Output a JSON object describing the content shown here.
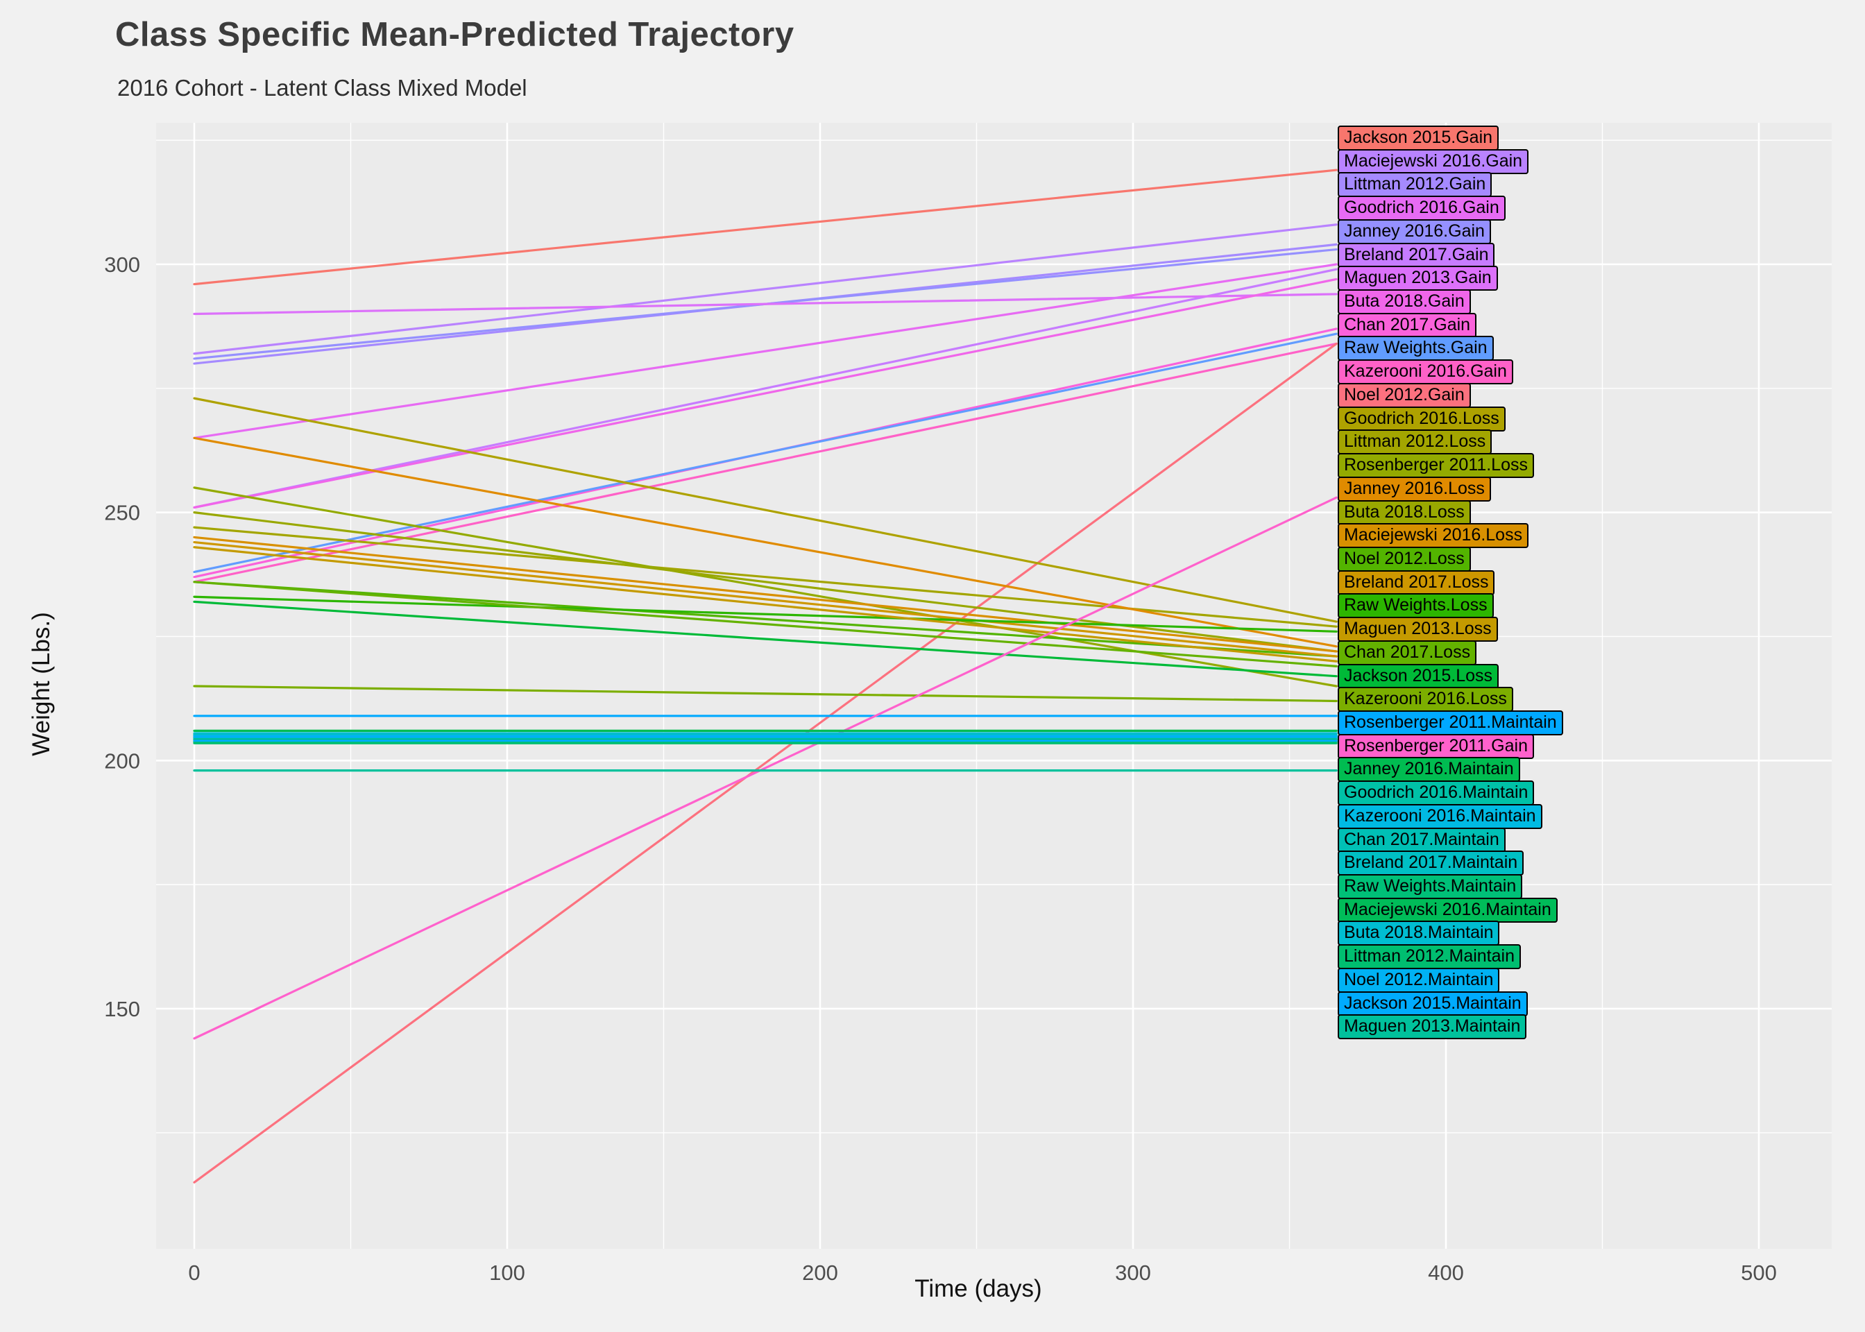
{
  "header": {
    "title": "Class Specific Mean-Predicted Trajectory",
    "subtitle": "2016 Cohort - Latent Class Mixed Model"
  },
  "chart_data": {
    "type": "line",
    "title": "Class Specific Mean-Predicted Trajectory",
    "subtitle": "2016 Cohort - Latent Class Mixed Model",
    "xlabel": "Time (days)",
    "ylabel": "Weight (Lbs.)",
    "x_ticks": [
      0,
      100,
      200,
      300,
      400,
      500
    ],
    "y_ticks": [
      150,
      200,
      250,
      300
    ],
    "xlim": [
      -12,
      520
    ],
    "ylim": [
      102,
      328
    ],
    "grid": true,
    "panel_bg": "#EBEBEB",
    "outer_bg": "#F1F1F1",
    "grid_color": "#FFFFFF",
    "legend_position": "labels-at-line-ends",
    "x": [
      0,
      365
    ],
    "series": [
      {
        "label": "Jackson 2015.Gain",
        "class": "Gain",
        "color": "#F8766D",
        "values": [
          296,
          319
        ]
      },
      {
        "label": "Maciejewski 2016.Gain",
        "class": "Gain",
        "color": "#B983FF",
        "values": [
          282,
          308
        ]
      },
      {
        "label": "Littman 2012.Gain",
        "class": "Gain",
        "color": "#A58AFF",
        "values": [
          280,
          304
        ]
      },
      {
        "label": "Goodrich 2016.Gain",
        "class": "Gain",
        "color": "#E76BF3",
        "values": [
          265,
          300
        ]
      },
      {
        "label": "Janney 2016.Gain",
        "class": "Gain",
        "color": "#9590FF",
        "values": [
          281,
          303
        ]
      },
      {
        "label": "Breland 2017.Gain",
        "class": "Gain",
        "color": "#C77CFF",
        "values": [
          251,
          299
        ]
      },
      {
        "label": "Maguen 2013.Gain",
        "class": "Gain",
        "color": "#DC71FA",
        "values": [
          290,
          294
        ]
      },
      {
        "label": "Buta 2018.Gain",
        "class": "Gain",
        "color": "#F066EA",
        "values": [
          251,
          297
        ]
      },
      {
        "label": "Chan 2017.Gain",
        "class": "Gain",
        "color": "#FA62DB",
        "values": [
          237,
          287
        ]
      },
      {
        "label": "Raw Weights.Gain",
        "class": "Gain",
        "color": "#619CFF",
        "values": [
          238,
          286
        ]
      },
      {
        "label": "Kazerooni 2016.Gain",
        "class": "Gain",
        "color": "#FF61C7",
        "values": [
          236,
          284
        ]
      },
      {
        "label": "Noel 2012.Gain",
        "class": "Gain",
        "color": "#FC717F",
        "values": [
          115,
          284
        ]
      },
      {
        "label": "Goodrich 2016.Loss",
        "class": "Loss",
        "color": "#AEA200",
        "values": [
          273,
          228
        ]
      },
      {
        "label": "Littman 2012.Loss",
        "class": "Loss",
        "color": "#A3A500",
        "values": [
          247,
          227
        ]
      },
      {
        "label": "Rosenberger 2011.Loss",
        "class": "Loss",
        "color": "#93AA00",
        "values": [
          255,
          215
        ]
      },
      {
        "label": "Janney 2016.Loss",
        "class": "Loss",
        "color": "#E08B00",
        "values": [
          265,
          223
        ]
      },
      {
        "label": "Buta 2018.Loss",
        "class": "Loss",
        "color": "#99A800",
        "values": [
          250,
          222
        ]
      },
      {
        "label": "Maciejewski 2016.Loss",
        "class": "Loss",
        "color": "#D89000",
        "values": [
          245,
          222
        ]
      },
      {
        "label": "Noel 2012.Loss",
        "class": "Loss",
        "color": "#53B400",
        "values": [
          236,
          221
        ]
      },
      {
        "label": "Breland 2017.Loss",
        "class": "Loss",
        "color": "#CE9700",
        "values": [
          244,
          221
        ]
      },
      {
        "label": "Raw Weights.Loss",
        "class": "Loss",
        "color": "#2CB600",
        "values": [
          233,
          226
        ]
      },
      {
        "label": "Maguen 2013.Loss",
        "class": "Loss",
        "color": "#C49A00",
        "values": [
          243,
          220
        ]
      },
      {
        "label": "Chan 2017.Loss",
        "class": "Loss",
        "color": "#64B200",
        "values": [
          236,
          219
        ]
      },
      {
        "label": "Jackson 2015.Loss",
        "class": "Loss",
        "color": "#00BA38",
        "values": [
          232,
          217
        ]
      },
      {
        "label": "Kazerooni 2016.Loss",
        "class": "Loss",
        "color": "#7CAE00",
        "values": [
          215,
          212
        ]
      },
      {
        "label": "Rosenberger 2011.Maintain",
        "class": "Maintain",
        "color": "#00A9FF",
        "values": [
          209,
          209
        ]
      },
      {
        "label": "Rosenberger 2011.Gain",
        "class": "Gain",
        "color": "#FF61CC",
        "values": [
          144,
          253
        ]
      },
      {
        "label": "Janney 2016.Maintain",
        "class": "Maintain",
        "color": "#00BC51",
        "values": [
          206,
          206
        ]
      },
      {
        "label": "Goodrich 2016.Maintain",
        "class": "Maintain",
        "color": "#00C1A7",
        "values": [
          205.2,
          205.2
        ]
      },
      {
        "label": "Kazerooni 2016.Maintain",
        "class": "Maintain",
        "color": "#00BAE3",
        "values": [
          205,
          205
        ]
      },
      {
        "label": "Chan 2017.Maintain",
        "class": "Maintain",
        "color": "#00C0B5",
        "values": [
          204.6,
          204.6
        ]
      },
      {
        "label": "Breland 2017.Maintain",
        "class": "Maintain",
        "color": "#00BFC4",
        "values": [
          204.4,
          204.4
        ]
      },
      {
        "label": "Raw Weights.Maintain",
        "class": "Maintain",
        "color": "#00C078",
        "values": [
          204.2,
          204.2
        ]
      },
      {
        "label": "Maciejewski 2016.Maintain",
        "class": "Maintain",
        "color": "#00BC59",
        "values": [
          203.8,
          203.8
        ]
      },
      {
        "label": "Buta 2018.Maintain",
        "class": "Maintain",
        "color": "#00BDD1",
        "values": [
          205.5,
          205.5
        ]
      },
      {
        "label": "Littman 2012.Maintain",
        "class": "Maintain",
        "color": "#00BE70",
        "values": [
          203.5,
          203.5
        ]
      },
      {
        "label": "Noel 2012.Maintain",
        "class": "Maintain",
        "color": "#00B2F3",
        "values": [
          204.8,
          204.8
        ]
      },
      {
        "label": "Jackson 2015.Maintain",
        "class": "Maintain",
        "color": "#00ABFD",
        "values": [
          204,
          204
        ]
      },
      {
        "label": "Maguen 2013.Maintain",
        "class": "Maintain",
        "color": "#00C19C",
        "values": [
          198,
          198
        ]
      }
    ]
  }
}
